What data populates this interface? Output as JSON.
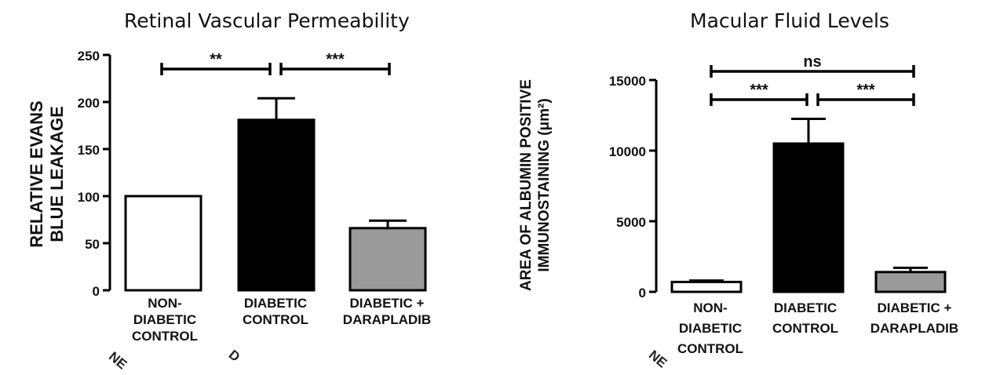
{
  "chart_data": [
    {
      "type": "bar",
      "title": "Retinal Vascular Permeability",
      "ylabel_lines": [
        "RELATIVE EVANS",
        "BLUE LEAKAGE"
      ],
      "categories": [
        "NON-DIABETIC CONTROL",
        "DIABETIC CONTROL",
        "DIABETIC + DARAPLADIB"
      ],
      "category_lines": [
        [
          "NON-",
          "DIABETIC",
          "CONTROL"
        ],
        [
          "DIABETIC",
          "CONTROL"
        ],
        [
          "DIABETIC +",
          "DARAPLADIB"
        ]
      ],
      "values": [
        100,
        181,
        66
      ],
      "errors": [
        0,
        23,
        8
      ],
      "bar_colors": [
        "#ffffff",
        "#000000",
        "#9a9a9a"
      ],
      "ylim": [
        0,
        250
      ],
      "yticks": [
        0,
        50,
        100,
        150,
        200,
        250
      ],
      "significance": [
        {
          "from": 0,
          "to": 1,
          "label": "**"
        },
        {
          "from": 1,
          "to": 2,
          "label": "***"
        }
      ],
      "stray_labels": [
        "NE",
        "D"
      ]
    },
    {
      "type": "bar",
      "title": "Macular Fluid Levels",
      "ylabel_lines": [
        "AREA OF ALBUMIN POSITIVE",
        "IMMUNOSTAINING (μm²)"
      ],
      "categories": [
        "NON-DIABETIC CONTROL",
        "DIABETIC CONTROL",
        "DIABETIC + DARAPLADIB"
      ],
      "category_lines": [
        [
          "NON-",
          "DIABETIC",
          "CONTROL"
        ],
        [
          "DIABETIC",
          "CONTROL"
        ],
        [
          "DIABETIC +",
          "DARAPLADIB"
        ]
      ],
      "values": [
        700,
        10500,
        1400
      ],
      "errors": [
        100,
        1750,
        300
      ],
      "bar_colors": [
        "#ffffff",
        "#000000",
        "#9a9a9a"
      ],
      "ylim": [
        0,
        15000
      ],
      "yticks": [
        0,
        5000,
        10000,
        15000
      ],
      "significance": [
        {
          "from": 0,
          "to": 2,
          "label": "ns"
        },
        {
          "from": 0,
          "to": 1,
          "label": "***"
        },
        {
          "from": 1,
          "to": 2,
          "label": "***"
        }
      ],
      "stray_labels": [
        "NE"
      ]
    }
  ]
}
